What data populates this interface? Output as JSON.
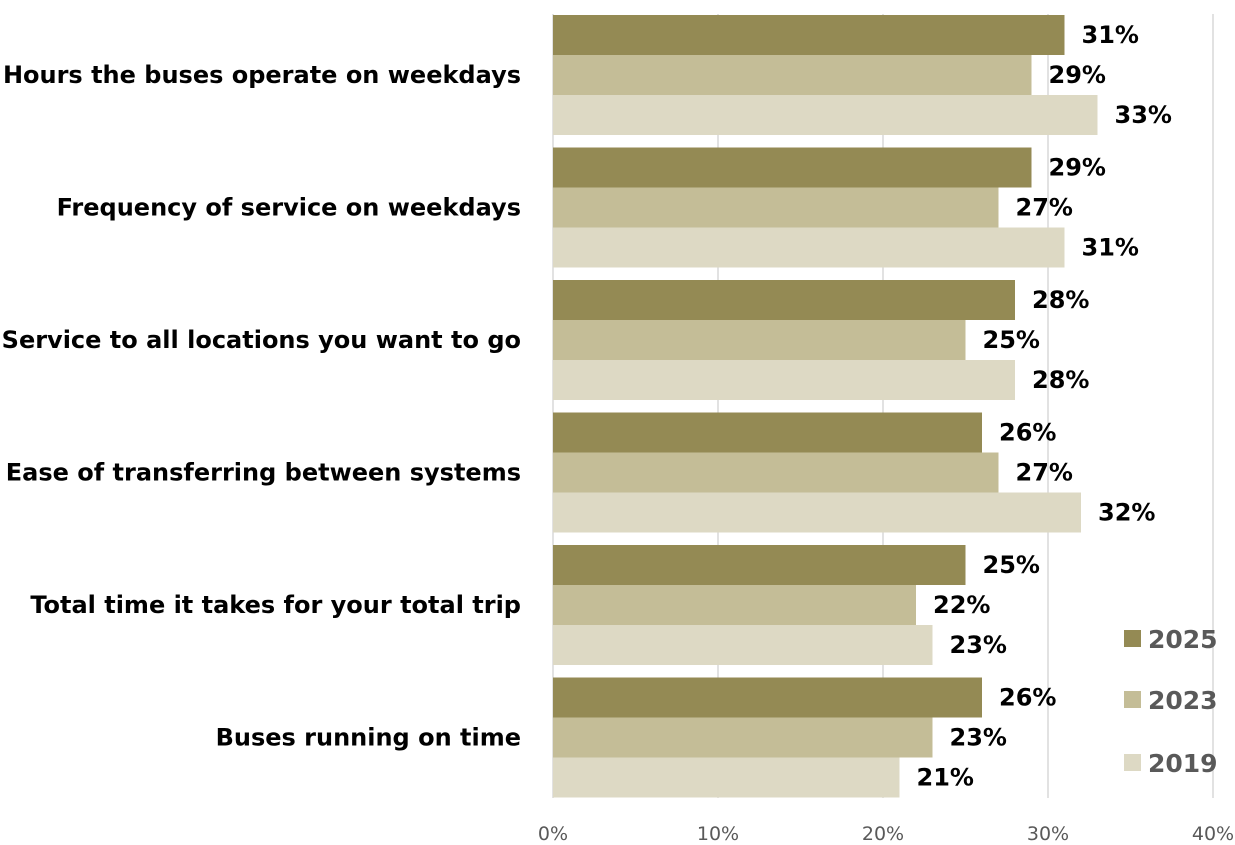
{
  "chart_data": {
    "type": "bar",
    "orientation": "horizontal",
    "categories": [
      "Hours the buses operate on weekdays",
      "Frequency of service on weekdays",
      "Service to all locations you want to go",
      "Ease of transferring between systems",
      "Total time it takes for your total trip",
      "Buses running on time"
    ],
    "series": [
      {
        "name": "2025",
        "color": "#948a54",
        "values": [
          31,
          29,
          28,
          26,
          25,
          26
        ],
        "labels": [
          "31%",
          "29%",
          "28%",
          "26%",
          "25%",
          "26%"
        ]
      },
      {
        "name": "2023",
        "color": "#c4bd97",
        "values": [
          29,
          27,
          25,
          27,
          22,
          23
        ],
        "labels": [
          "29%",
          "27%",
          "25%",
          "27%",
          "22%",
          "23%"
        ]
      },
      {
        "name": "2019",
        "color": "#ddd9c4",
        "values": [
          33,
          31,
          28,
          32,
          23,
          21
        ],
        "labels": [
          "33%",
          "31%",
          "28%",
          "32%",
          "23%",
          "21%"
        ]
      }
    ],
    "xlim": [
      0,
      40
    ],
    "x_ticks": [
      "0%",
      "10%",
      "20%",
      "30%",
      "40%"
    ],
    "x_tick_values": [
      0,
      10,
      20,
      30,
      40
    ],
    "grid": true,
    "legend_position": "bottom-right",
    "title": "",
    "xlabel": "",
    "ylabel": ""
  }
}
